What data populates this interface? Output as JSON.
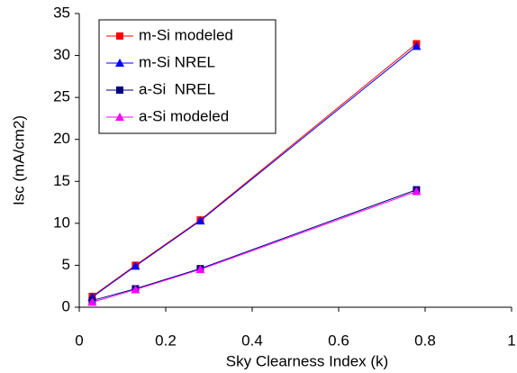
{
  "chart_data": {
    "type": "line",
    "x_label": "Sky Clearness Index (k)",
    "y_label": "Isc (mA/cm2)",
    "x": [
      0.03,
      0.13,
      0.28,
      0.78
    ],
    "series": [
      {
        "name": "m-Si modeled",
        "color": "#ff0000",
        "marker": "square",
        "values": [
          1.3,
          5.0,
          10.4,
          31.4
        ]
      },
      {
        "name": "m-Si NREL",
        "color": "#0000ff",
        "marker": "triangle",
        "values": [
          1.2,
          4.9,
          10.3,
          31.1
        ]
      },
      {
        "name": "a-Si  NREL",
        "color": "#000080",
        "marker": "square",
        "values": [
          0.8,
          2.2,
          4.6,
          14.0
        ]
      },
      {
        "name": "a-Si modeled",
        "color": "#ff00ff",
        "marker": "triangle",
        "values": [
          0.6,
          2.1,
          4.5,
          13.8
        ]
      }
    ],
    "xlim": [
      0,
      1
    ],
    "xticks": [
      0,
      0.2,
      0.4,
      0.6,
      0.8,
      1
    ],
    "ylim": [
      0,
      35
    ],
    "yticks": [
      0,
      5,
      10,
      15,
      20,
      25,
      30,
      35
    ],
    "grid": false,
    "legend": "upper left"
  }
}
